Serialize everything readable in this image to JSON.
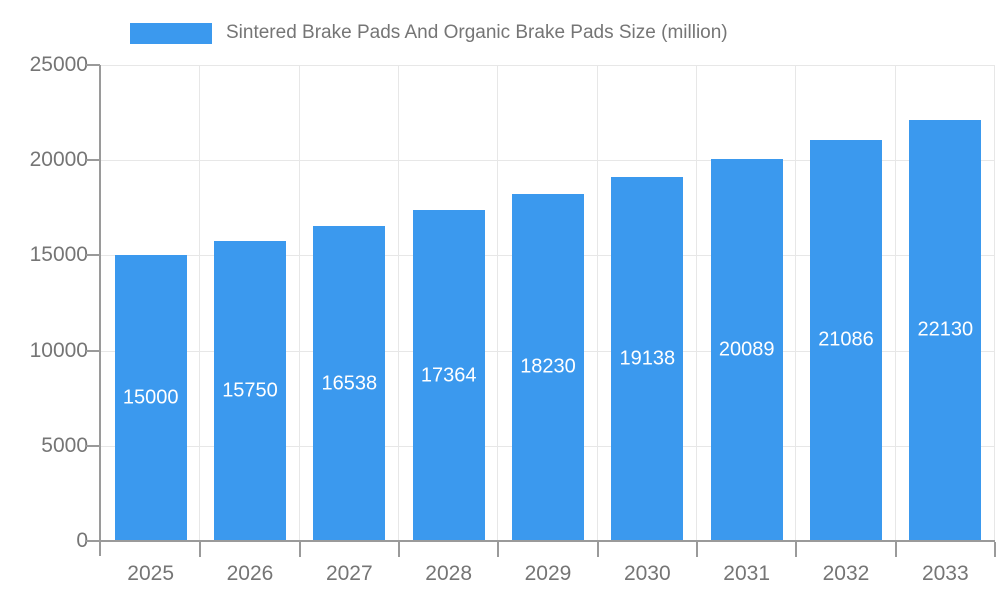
{
  "legend": {
    "label": "Sintered Brake Pads And Organic Brake Pads Size (million)"
  },
  "chart_data": {
    "type": "bar",
    "title": "Sintered Brake Pads And Organic Brake Pads Size (million)",
    "categories": [
      "2025",
      "2026",
      "2027",
      "2028",
      "2029",
      "2030",
      "2031",
      "2032",
      "2033"
    ],
    "values": [
      15000,
      15750,
      16538,
      17364,
      18230,
      19138,
      20089,
      21086,
      22130
    ],
    "series": [
      {
        "name": "Sintered Brake Pads And Organic Brake Pads Size (million)",
        "values": [
          15000,
          15750,
          16538,
          17364,
          18230,
          19138,
          20089,
          21086,
          22130
        ]
      }
    ],
    "xlabel": "",
    "ylabel": "",
    "ylim": [
      0,
      25000
    ],
    "yticks": [
      0,
      5000,
      10000,
      15000,
      20000,
      25000
    ],
    "grid": true,
    "legend_position": "top",
    "value_labels": "inside-center",
    "colors": {
      "bar": "#3B99EE",
      "value_label": "#FFFFFF",
      "axis_text": "#757575",
      "axis_line": "#9A9A9A",
      "gridline": "#E7E7E7",
      "background": "#FFFFFF"
    }
  }
}
